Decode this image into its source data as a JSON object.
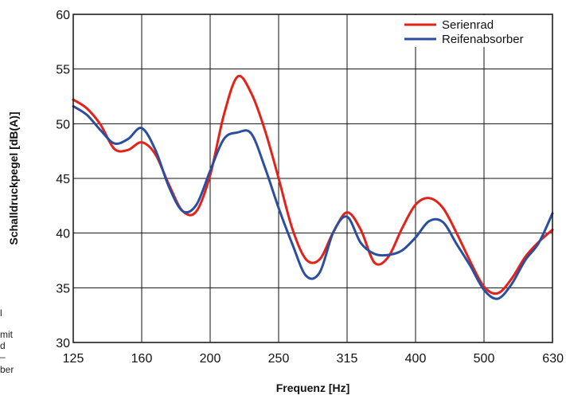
{
  "chart_data": {
    "type": "line",
    "title": "",
    "xlabel": "Frequenz [Hz]",
    "ylabel": "Schalldruckpegel [dB(A)]",
    "x_ticks": [
      "125",
      "160",
      "200",
      "250",
      "315",
      "400",
      "500",
      "630"
    ],
    "x_scale": "categorical-thirdoctave",
    "ylim": [
      30,
      60
    ],
    "y_ticks": [
      30,
      35,
      40,
      45,
      50,
      55,
      60
    ],
    "grid": true,
    "legend_position": "top-right",
    "series": [
      {
        "name": "Serienrad",
        "color": "#e32219",
        "x": [
          0.0,
          0.2,
          0.4,
          0.6,
          0.8,
          1.0,
          1.2,
          1.4,
          1.6,
          1.8,
          2.0,
          2.2,
          2.4,
          2.6,
          2.8,
          3.0,
          3.2,
          3.4,
          3.6,
          3.8,
          4.0,
          4.2,
          4.4,
          4.6,
          4.8,
          5.0,
          5.2,
          5.4,
          5.6,
          5.8,
          6.0,
          6.2,
          6.4,
          6.6,
          6.8,
          7.0
        ],
        "values": [
          52.2,
          51.4,
          49.9,
          47.7,
          47.6,
          48.3,
          47.2,
          44.4,
          42.0,
          42.0,
          45.3,
          50.8,
          54.3,
          52.8,
          49.4,
          45.0,
          40.4,
          37.6,
          37.6,
          40.1,
          41.9,
          40.3,
          37.3,
          37.8,
          40.4,
          42.6,
          43.2,
          42.3,
          40.0,
          37.4,
          35.1,
          34.5,
          35.8,
          37.8,
          39.2,
          40.3
        ]
      },
      {
        "name": "Reifenabsorber",
        "color": "#2b4f9e",
        "x": [
          0.0,
          0.2,
          0.4,
          0.6,
          0.8,
          1.0,
          1.2,
          1.4,
          1.6,
          1.8,
          2.0,
          2.2,
          2.4,
          2.6,
          2.8,
          3.0,
          3.2,
          3.4,
          3.6,
          3.8,
          4.0,
          4.2,
          4.4,
          4.6,
          4.8,
          5.0,
          5.2,
          5.4,
          5.6,
          5.8,
          6.0,
          6.2,
          6.4,
          6.6,
          6.8,
          7.0
        ],
        "values": [
          51.6,
          50.8,
          49.4,
          48.2,
          48.6,
          49.6,
          47.6,
          44.2,
          42.0,
          42.6,
          45.7,
          48.6,
          49.2,
          49.1,
          46.0,
          42.3,
          39.0,
          36.1,
          36.4,
          40.1,
          41.5,
          39.1,
          38.1,
          38.0,
          38.4,
          39.6,
          41.1,
          41.0,
          39.0,
          37.0,
          34.8,
          34.0,
          35.3,
          37.5,
          39.1,
          41.8
        ]
      }
    ]
  },
  "side_caption": [
    "l",
    "mit",
    "d",
    "–",
    "ber"
  ]
}
